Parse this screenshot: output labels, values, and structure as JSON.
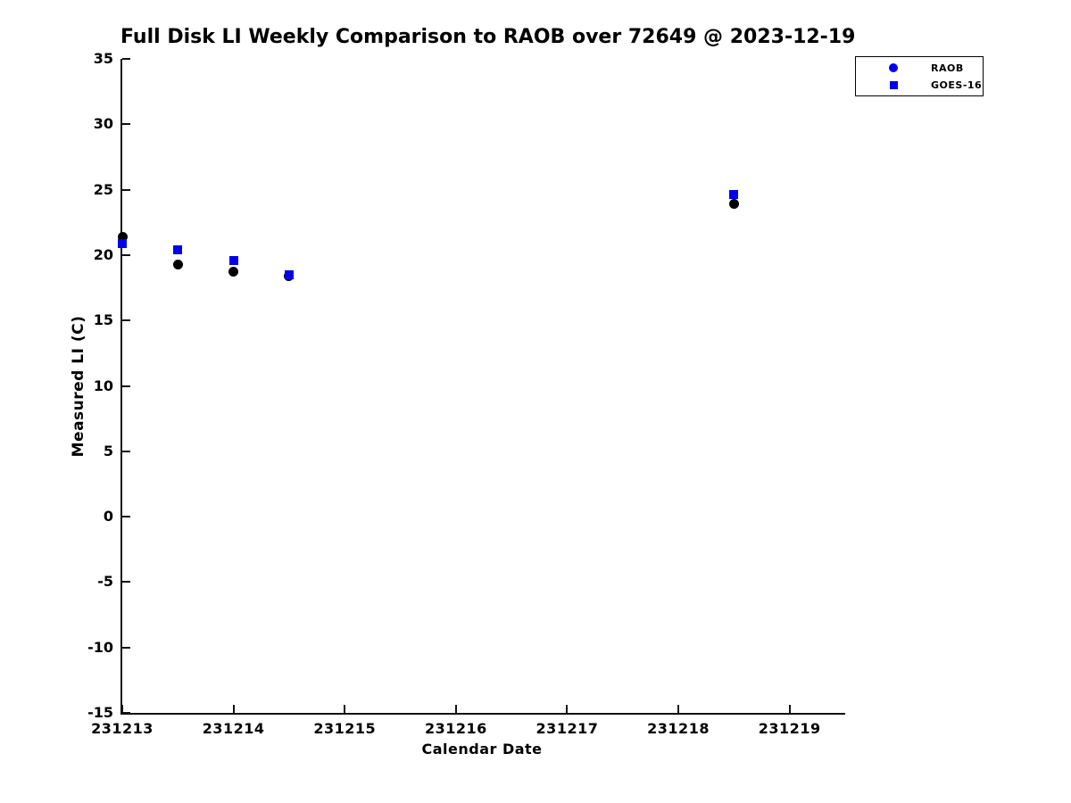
{
  "chart_data": {
    "type": "scatter",
    "title": "Full Disk LI Weekly Comparison to RAOB over 72649 @ 2023-12-19",
    "xlabel": "Calendar Date",
    "ylabel": "Measured LI (C)",
    "xlim": [
      231213,
      231219.5
    ],
    "ylim": [
      -15,
      35
    ],
    "x_ticks": [
      "231213",
      "231214",
      "231215",
      "231216",
      "231217",
      "231218",
      "231219"
    ],
    "y_ticks": [
      "35",
      "30",
      "25",
      "20",
      "15",
      "10",
      "5",
      "0",
      "-5",
      "-10",
      "-15"
    ],
    "grid": false,
    "legend_position": "top-right",
    "colors": {
      "raob_points": "#000000",
      "goes16_points": "#0000ee",
      "legend_markers": "#0000ee",
      "axis": "#111111"
    },
    "series": [
      {
        "name": "RAOB",
        "marker": "circle",
        "point_color": "#000000",
        "legend_color": "#0000ee",
        "x": [
          231213.0,
          231213.5,
          231214.0,
          231214.5,
          231218.5
        ],
        "y": [
          21.4,
          19.3,
          18.7,
          18.4,
          23.9
        ]
      },
      {
        "name": "GOES-16",
        "marker": "square",
        "point_color": "#0000ee",
        "legend_color": "#0000ee",
        "x": [
          231213.0,
          231213.5,
          231214.0,
          231214.5,
          231218.5
        ],
        "y": [
          20.9,
          20.4,
          19.6,
          18.5,
          24.6
        ]
      }
    ]
  }
}
